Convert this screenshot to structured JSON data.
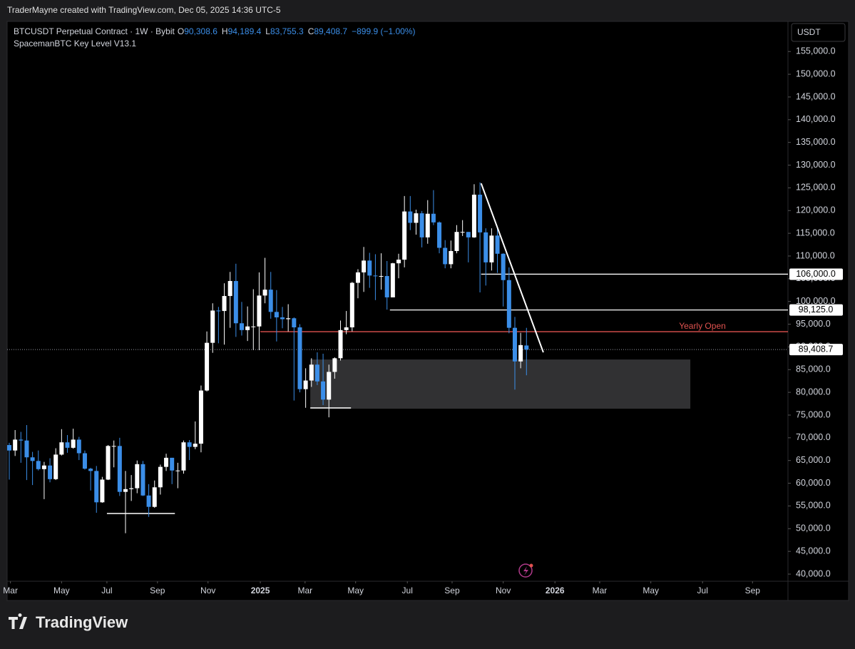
{
  "header": {
    "text": "TraderMayne created with TradingView.com, Dec 05, 2025 14:36 UTC-5"
  },
  "footer": {
    "brand": "TradingView"
  },
  "chart_data": {
    "type": "candlestick",
    "title": "BTCUSDT Perpetual Contract · 1W · Bybit",
    "subtitle": "SpacemanBTC Key Level V13.1",
    "y_axis_label": "USDT",
    "legend_values": [
      {
        "key": "O",
        "text": "90,308.6"
      },
      {
        "key": "H",
        "text": "94,189.4"
      },
      {
        "key": "L",
        "text": "83,755.3"
      },
      {
        "key": "C",
        "text": "89,408.7"
      }
    ],
    "change": "−899.9 (−1.00%)",
    "up_color": "#ffffff",
    "down_color": "#3b8ee8",
    "open": [
      68400,
      67200,
      69600,
      69400,
      65700,
      64900,
      63100,
      63900,
      60900,
      66300,
      69000,
      67800,
      69600,
      66600,
      63200,
      62700,
      55800,
      60800,
      68200,
      68200,
      58100,
      58700,
      58900,
      64200,
      57300,
      54800,
      59100,
      63600,
      65600,
      62800,
      62800,
      69000,
      68000,
      68700,
      80400,
      90900,
      98000,
      97900,
      101200,
      104500,
      95200,
      93700,
      94500,
      94500,
      101300,
      102600,
      97700,
      96500,
      96100,
      96300,
      94300,
      80700,
      82600,
      86100,
      82400,
      78400,
      84500,
      87500,
      93700,
      94300,
      104100,
      106400,
      109000,
      105700,
      105600,
      105600,
      100900,
      108400,
      109200,
      119800,
      117300,
      119400,
      114100,
      119300,
      117400,
      111800,
      108200,
      111100,
      115300,
      115300,
      114100,
      123500,
      115200,
      108600,
      114500,
      110500,
      104700,
      94200,
      86800,
      90308.6
    ],
    "high": [
      68900,
      71700,
      71300,
      72800,
      66900,
      67200,
      64700,
      65500,
      67700,
      71900,
      70600,
      72000,
      70200,
      67200,
      63400,
      63800,
      61400,
      68400,
      69400,
      70000,
      62700,
      61800,
      65000,
      64900,
      59800,
      60600,
      64100,
      66500,
      65600,
      64500,
      69400,
      69500,
      73600,
      81500,
      93400,
      99600,
      98800,
      104000,
      106500,
      108300,
      99900,
      98900,
      102700,
      106400,
      109600,
      106500,
      102500,
      98800,
      99400,
      96500,
      95000,
      85300,
      87500,
      88800,
      88500,
      86100,
      87700,
      95800,
      97900,
      104300,
      107100,
      112000,
      110700,
      110400,
      110600,
      108900,
      108500,
      110500,
      123200,
      123200,
      120200,
      119900,
      122300,
      124500,
      117600,
      113500,
      113400,
      116800,
      117900,
      115300,
      125800,
      126200,
      116100,
      116100,
      116400,
      110600,
      107500,
      96600,
      93100,
      94189.4
    ],
    "low": [
      60800,
      66000,
      64500,
      60700,
      59600,
      62800,
      56500,
      60200,
      60700,
      66100,
      66700,
      67600,
      65100,
      63000,
      58400,
      53500,
      55700,
      60700,
      63500,
      57200,
      49000,
      56100,
      57800,
      57200,
      52600,
      54600,
      57500,
      62700,
      59800,
      58900,
      62100,
      65100,
      67500,
      66800,
      80200,
      88700,
      90800,
      90500,
      94200,
      92200,
      92500,
      91300,
      89300,
      89300,
      99600,
      96200,
      91200,
      94100,
      93400,
      78200,
      80000,
      76600,
      81200,
      81600,
      77200,
      74500,
      83000,
      87000,
      92800,
      93400,
      100700,
      102100,
      103000,
      100300,
      102600,
      98200,
      100900,
      105100,
      107500,
      115700,
      114700,
      111900,
      112700,
      116800,
      110600,
      107300,
      107300,
      110600,
      114400,
      108600,
      114000,
      102000,
      103500,
      106800,
      106300,
      98900,
      93000,
      80600,
      85300,
      83755.3
    ],
    "close": [
      67200,
      69600,
      69400,
      65700,
      64900,
      63100,
      63900,
      60900,
      66300,
      69000,
      67800,
      69600,
      66600,
      63200,
      62700,
      55800,
      60800,
      68200,
      68200,
      58100,
      58700,
      58900,
      64200,
      57300,
      54800,
      59100,
      63600,
      65600,
      62800,
      62800,
      69000,
      68000,
      68700,
      80400,
      90900,
      98000,
      97900,
      101200,
      104500,
      95200,
      93700,
      94500,
      94500,
      101300,
      102600,
      97700,
      96500,
      96100,
      96300,
      94300,
      80700,
      82600,
      86100,
      82400,
      78400,
      84500,
      87500,
      93700,
      94300,
      104100,
      106400,
      109000,
      105700,
      105600,
      105600,
      100900,
      108400,
      109200,
      119800,
      117300,
      119400,
      114100,
      119300,
      117400,
      111800,
      108200,
      111100,
      115300,
      115300,
      114100,
      123500,
      115200,
      108600,
      114500,
      110500,
      104700,
      94200,
      86800,
      90400,
      89408.7
    ],
    "xlim": [
      -0.37,
      134.0
    ],
    "xticks": [
      {
        "value": 0.2,
        "label": "Mar"
      },
      {
        "value": 9.0,
        "label": "May"
      },
      {
        "value": 16.8,
        "label": "Jul"
      },
      {
        "value": 25.5,
        "label": "Sep"
      },
      {
        "value": 34.2,
        "label": "Nov"
      },
      {
        "value": 43.2,
        "label": "2025"
      },
      {
        "value": 50.9,
        "label": "Mar"
      },
      {
        "value": 59.6,
        "label": "May"
      },
      {
        "value": 68.5,
        "label": "Jul"
      },
      {
        "value": 76.2,
        "label": "Sep"
      },
      {
        "value": 85.0,
        "label": "Nov"
      },
      {
        "value": 93.9,
        "label": "2026"
      },
      {
        "value": 101.6,
        "label": "Mar"
      },
      {
        "value": 110.4,
        "label": "May"
      },
      {
        "value": 119.3,
        "label": "Jul"
      },
      {
        "value": 127.9,
        "label": "Sep"
      }
    ],
    "ylim": [
      38430,
      161630
    ],
    "yticks": [
      {
        "value": 40000,
        "label": "40,000.0"
      },
      {
        "value": 45000,
        "label": "45,000.0"
      },
      {
        "value": 50000,
        "label": "50,000.0"
      },
      {
        "value": 55000,
        "label": "55,000.0"
      },
      {
        "value": 60000,
        "label": "60,000.0"
      },
      {
        "value": 65000,
        "label": "65,000.0"
      },
      {
        "value": 70000,
        "label": "70,000.0"
      },
      {
        "value": 75000,
        "label": "75,000.0"
      },
      {
        "value": 80000,
        "label": "80,000.0"
      },
      {
        "value": 85000,
        "label": "85,000.0"
      },
      {
        "value": 90000,
        "label": "90,000.0"
      },
      {
        "value": 95000,
        "label": "95,000.0"
      },
      {
        "value": 100000,
        "label": "100,000.0"
      },
      {
        "value": 105000,
        "label": "105,000.0"
      },
      {
        "value": 110000,
        "label": "110,000.0"
      },
      {
        "value": 115000,
        "label": "115,000.0"
      },
      {
        "value": 120000,
        "label": "120,000.0"
      },
      {
        "value": 125000,
        "label": "125,000.0"
      },
      {
        "value": 130000,
        "label": "130,000.0"
      },
      {
        "value": 135000,
        "label": "135,000.0"
      },
      {
        "value": 140000,
        "label": "140,000.0"
      },
      {
        "value": 145000,
        "label": "145,000.0"
      },
      {
        "value": 150000,
        "label": "150,000.0"
      },
      {
        "value": 155000,
        "label": "155,000.0"
      }
    ],
    "levels": [
      {
        "name": "Yearly Open",
        "value": 93350,
        "x": [
          43.2,
          134.0
        ],
        "color": "#e0524f",
        "style": "solid"
      },
      {
        "value": 106000,
        "label": "106,000.0",
        "x": [
          81.2,
          134.0
        ],
        "color": "#ffffff",
        "style": "solid"
      },
      {
        "value": 98125,
        "label": "98,125.0",
        "x": [
          65.5,
          134.0
        ],
        "color": "#ffffff",
        "style": "solid"
      },
      {
        "value": 89408.7,
        "label": "89,408.7",
        "x": [
          -0.37,
          134.0
        ],
        "color": "#9598a1",
        "style": "dotted"
      }
    ],
    "zone": {
      "low": 76400,
      "high": 87230,
      "x": [
        51.8,
        117.2
      ],
      "color": "#3a3a3c"
    },
    "trendline": {
      "x": [
        81.2,
        91.9
      ],
      "y": [
        125980,
        88800
      ],
      "color": "#ffffff"
    },
    "swing_lows": [
      {
        "x": [
          16.8,
          28.5
        ],
        "value": 53340
      },
      {
        "x": [
          51.8,
          58.8
        ],
        "value": 76560
      }
    ]
  }
}
